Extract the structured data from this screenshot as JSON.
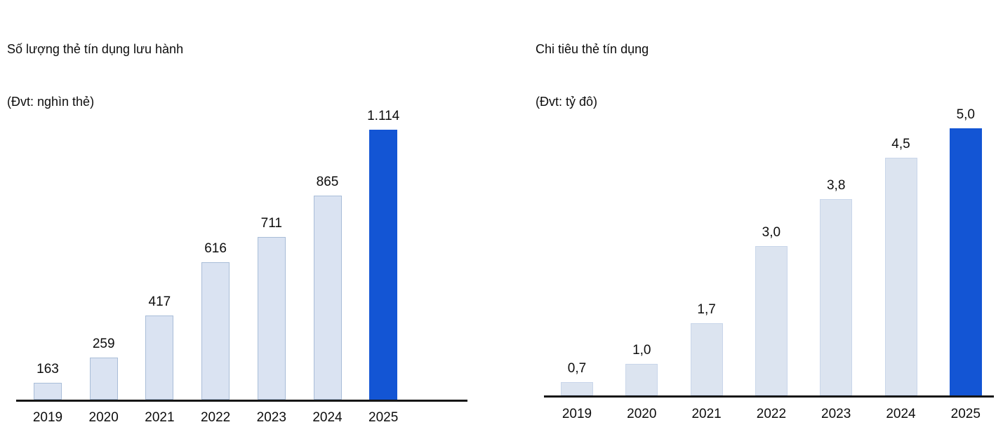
{
  "page": {
    "background": "#ffffff"
  },
  "chart_data": [
    {
      "type": "bar",
      "title": "Số lượng thẻ tín dụng lưu hành",
      "subtitle": "(Đvt: nghìn thẻ)",
      "categories": [
        "2019",
        "2020",
        "2021",
        "2022",
        "2023",
        "2024",
        "2025"
      ],
      "values": [
        163,
        259,
        417,
        616,
        711,
        865,
        1114
      ],
      "value_labels": [
        "163",
        "259",
        "417",
        "616",
        "711",
        "865",
        "1.114"
      ],
      "highlight_category": "2025",
      "legend": "none",
      "grid": false,
      "baseline": "non-zero (bars eyeballed, axis truncated)",
      "colors": {
        "bar_fill": "#dae3f2",
        "bar_border": "#a9bdd8",
        "highlight_fill": "#1355d4",
        "axis": "#161616",
        "text": "#0d0d0d"
      }
    },
    {
      "type": "bar",
      "title": "Chi tiêu thẻ tín dụng",
      "subtitle": "(Đvt: tỷ đô)",
      "categories": [
        "2019",
        "2020",
        "2021",
        "2022",
        "2023",
        "2024",
        "2025"
      ],
      "values": [
        0.7,
        1.0,
        1.7,
        3.0,
        3.8,
        4.5,
        5.0
      ],
      "value_labels": [
        "0,7",
        "1,0",
        "1,7",
        "3,0",
        "3,8",
        "4,5",
        "5,0"
      ],
      "highlight_category": "2025",
      "legend": "none",
      "grid": false,
      "baseline": "non-zero (bars eyeballed, axis truncated)",
      "colors": {
        "bar_fill": "#dce4f0",
        "bar_border": "#c9d6ea",
        "highlight_fill": "#1355d4",
        "axis": "#161616",
        "text": "#0d0d0d"
      }
    }
  ]
}
